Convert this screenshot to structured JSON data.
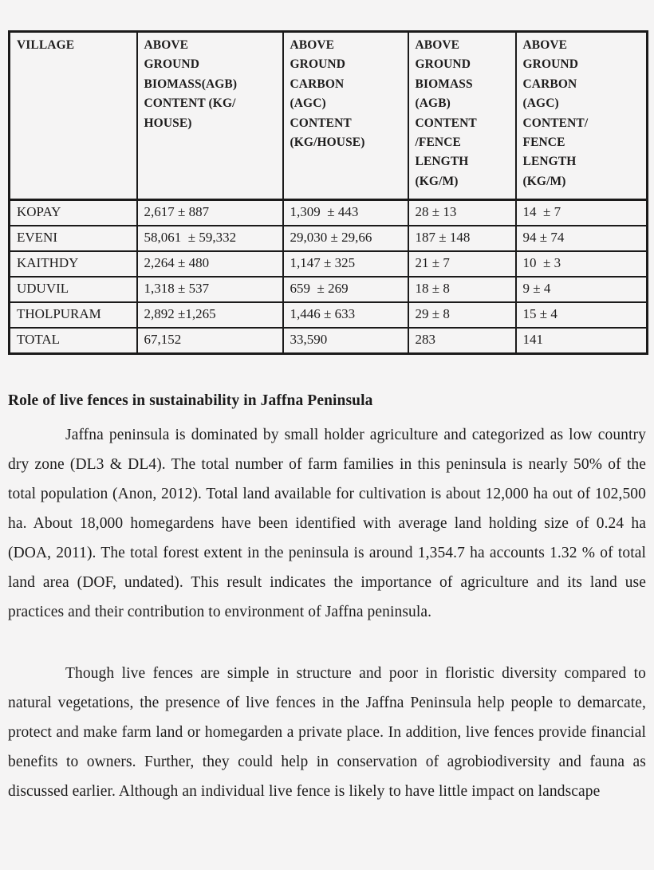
{
  "table": {
    "headers": [
      "VILLAGE",
      "ABOVE\nGROUND\nBIOMASS(AGB)\nCONTENT (KG/\nHOUSE)",
      "ABOVE\nGROUND\nCARBON\n(AGC)\nCONTENT\n(KG/HOUSE)",
      "ABOVE\nGROUND\nBIOMASS\n(AGB)\nCONTENT\n/FENCE\nLENGTH\n(KG/M)",
      "ABOVE\nGROUND\nCARBON\n(AGC)\nCONTENT/\nFENCE\nLENGTH\n(KG/M)"
    ],
    "rows": [
      [
        "KOPAY",
        "2,617 ± 887",
        "1,309  ± 443",
        "28 ± 13",
        "14  ± 7"
      ],
      [
        "EVENI",
        "58,061  ± 59,332",
        "29,030 ± 29,66",
        "187 ± 148",
        "94 ± 74"
      ],
      [
        "KAITHDY",
        "2,264 ± 480",
        "1,147 ± 325",
        "21 ± 7",
        "10  ± 3"
      ],
      [
        "UDUVIL",
        "1,318 ± 537",
        "659  ± 269",
        "18 ± 8",
        "9 ± 4"
      ],
      [
        "THOLPURAM",
        "2,892 ±1,265",
        "1,446 ± 633",
        "29 ± 8",
        "15 ± 4"
      ],
      [
        "TOTAL",
        "67,152",
        "33,590",
        "283",
        "141"
      ]
    ]
  },
  "section": {
    "heading": "Role of live fences in sustainability in Jaffna Peninsula",
    "paragraph1": "Jaffna peninsula is dominated by small holder agriculture and categorized as low country dry zone (DL3 & DL4). The total number of farm families in this peninsula is nearly 50% of the total population (Anon, 2012). Total land available for cultivation is about 12,000 ha out of 102,500 ha. About 18,000 homegardens have been identified with average land holding size of 0.24 ha (DOA, 2011). The total forest extent in the peninsula is around 1,354.7 ha accounts 1.32 % of total land area (DOF, undated). This result indicates the importance of agriculture and its land use practices and their contribution to environment of Jaffna peninsula.",
    "paragraph2": "Though live fences are simple in structure and poor in floristic diversity compared to natural vegetations, the presence of live fences in the Jaffna Peninsula help people to demarcate, protect and make farm land or homegarden a private place. In addition, live fences provide financial benefits to owners. Further, they could help in conservation of agrobiodiversity and fauna as discussed earlier. Although an individual live fence is likely to have little impact on landscape"
  }
}
